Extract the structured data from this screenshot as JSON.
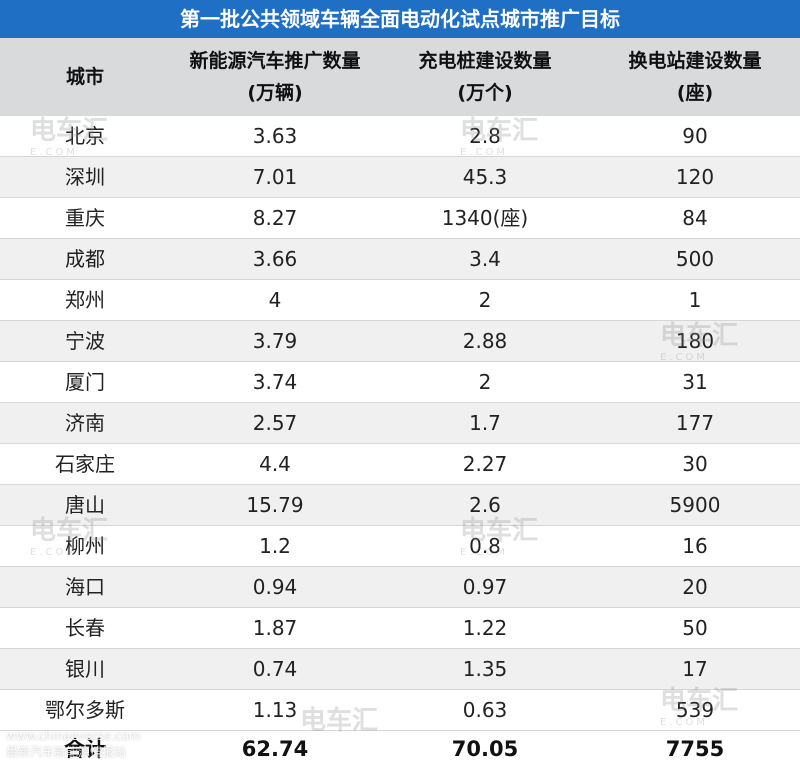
{
  "title": "第一批公共领域车辆全面电动化试点城市推广目标",
  "headers": {
    "city": "城市",
    "col1_line1": "新能源汽车推广数量",
    "col1_line2": "(万辆)",
    "col2_line1": "充电桩建设数量",
    "col2_line2": "(万个)",
    "col3_line1": "换电站建设数量",
    "col3_line2": "(座)"
  },
  "rows": [
    {
      "city": "北京",
      "ev": "3.63",
      "chargers": "2.8",
      "stations": "90"
    },
    {
      "city": "深圳",
      "ev": "7.01",
      "chargers": "45.3",
      "stations": "120"
    },
    {
      "city": "重庆",
      "ev": "8.27",
      "chargers": "1340(座)",
      "stations": "84"
    },
    {
      "city": "成都",
      "ev": "3.66",
      "chargers": "3.4",
      "stations": "500"
    },
    {
      "city": "郑州",
      "ev": "4",
      "chargers": "2",
      "stations": "1"
    },
    {
      "city": "宁波",
      "ev": "3.79",
      "chargers": "2.88",
      "stations": "180"
    },
    {
      "city": "厦门",
      "ev": "3.74",
      "chargers": "2",
      "stations": "31"
    },
    {
      "city": "济南",
      "ev": "2.57",
      "chargers": "1.7",
      "stations": "177"
    },
    {
      "city": "石家庄",
      "ev": "4.4",
      "chargers": "2.27",
      "stations": "30"
    },
    {
      "city": "唐山",
      "ev": "15.79",
      "chargers": "2.6",
      "stations": "5900"
    },
    {
      "city": "柳州",
      "ev": "1.2",
      "chargers": "0.8",
      "stations": "16"
    },
    {
      "city": "海口",
      "ev": "0.94",
      "chargers": "0.97",
      "stations": "20"
    },
    {
      "city": "长春",
      "ev": "1.87",
      "chargers": "1.22",
      "stations": "50"
    },
    {
      "city": "银川",
      "ev": "0.74",
      "chargers": "1.35",
      "stations": "17"
    },
    {
      "city": "鄂尔多斯",
      "ev": "1.13",
      "chargers": "0.63",
      "stations": "539"
    }
  ],
  "total": {
    "city": "合计",
    "ev": "62.74",
    "chargers": "70.05",
    "stations": "7755"
  },
  "watermark": {
    "text": "电车汇",
    "sub": "E.COM"
  },
  "footer": {
    "line1": "www.chinaeverse.com",
    "line2": "最新汽车新能源情报站"
  }
}
